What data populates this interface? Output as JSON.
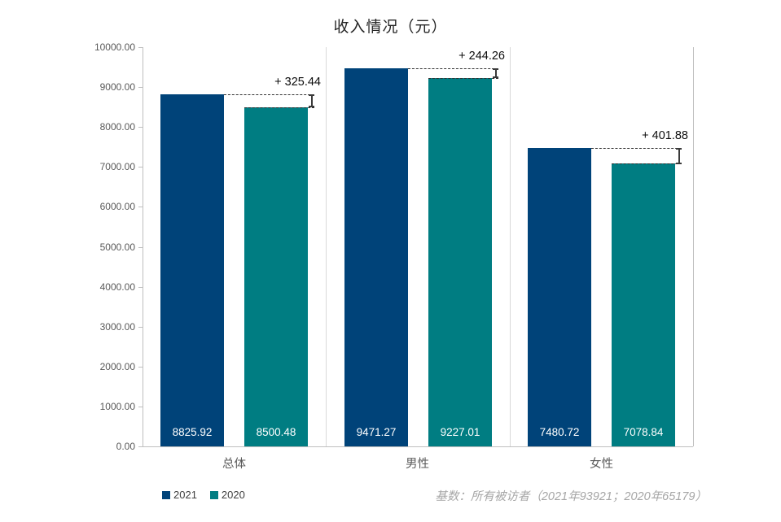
{
  "chart_data": {
    "type": "bar",
    "title": "收入情况（元）",
    "categories": [
      "总体",
      "男性",
      "女性"
    ],
    "series": [
      {
        "name": "2021",
        "color": "#004379",
        "values": [
          8825.92,
          9471.27,
          7480.72
        ]
      },
      {
        "name": "2020",
        "color": "#007d82",
        "values": [
          8500.48,
          9227.01,
          7078.84
        ]
      }
    ],
    "value_labels": [
      [
        "8825.92",
        "9471.27",
        "7480.72"
      ],
      [
        "8500.48",
        "9227.01",
        "7078.84"
      ]
    ],
    "differences": [
      "+ 325.44",
      "+ 244.26",
      "+ 401.88"
    ],
    "ylim": [
      0,
      10000
    ],
    "ytick_interval": 1000,
    "ytick_labels": [
      "10000.00",
      "9000.00",
      "8000.00",
      "7000.00",
      "6000.00",
      "5000.00",
      "4000.00",
      "3000.00",
      "2000.00",
      "1000.00",
      "0.00"
    ],
    "grid": "off",
    "legend_position": "bottom-left",
    "footnote": "基数：所有被访者（2021年93921；2020年65179）",
    "colors": {
      "series_2021": "#004379",
      "series_2020": "#007d82",
      "frame": "#bfbfbf",
      "separator": "#d9d9d9",
      "axis_text": "#595959",
      "annotation_text": "#0d0d0d",
      "bracket": "#3a3a3a",
      "footnote_text": "#a6a6a6",
      "bar_value_text": "#ffffff"
    }
  }
}
